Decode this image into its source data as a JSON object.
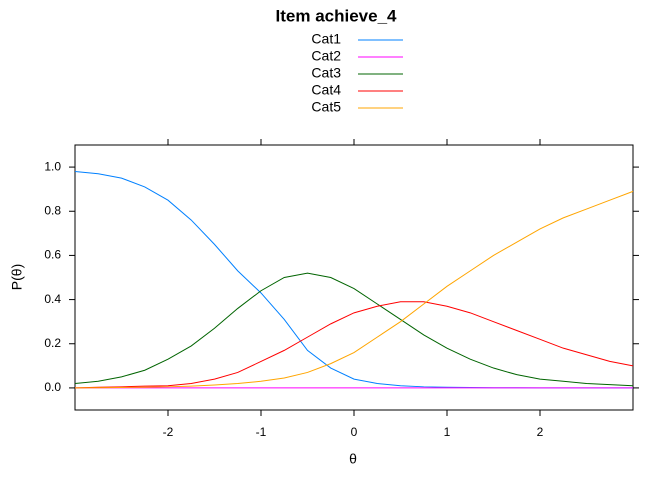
{
  "chart_data": {
    "type": "line",
    "title": "Item achieve_4",
    "xlabel": "θ",
    "ylabel": "P(θ)",
    "x": [
      -3,
      -2.75,
      -2.5,
      -2.25,
      -2,
      -1.75,
      -1.5,
      -1.25,
      -1,
      -0.75,
      -0.5,
      -0.25,
      0,
      0.25,
      0.5,
      0.75,
      1,
      1.25,
      1.5,
      1.75,
      2,
      2.25,
      2.5,
      2.75,
      3
    ],
    "series": [
      {
        "name": "Cat1",
        "color": "#0080ff",
        "values": [
          0.98,
          0.97,
          0.95,
          0.91,
          0.85,
          0.76,
          0.65,
          0.53,
          0.43,
          0.31,
          0.17,
          0.09,
          0.04,
          0.02,
          0.01,
          0.005,
          0.003,
          0.002,
          0.001,
          0.001,
          0,
          0,
          0,
          0,
          0
        ]
      },
      {
        "name": "Cat2",
        "color": "#ff00ff",
        "values": [
          0,
          0,
          0,
          0,
          0,
          0,
          0,
          0,
          0,
          0,
          0,
          0,
          0,
          0,
          0,
          0,
          0,
          0,
          0,
          0,
          0,
          0,
          0,
          0,
          0
        ]
      },
      {
        "name": "Cat3",
        "color": "#006400",
        "values": [
          0.02,
          0.03,
          0.05,
          0.08,
          0.13,
          0.19,
          0.27,
          0.36,
          0.44,
          0.5,
          0.52,
          0.5,
          0.45,
          0.38,
          0.31,
          0.24,
          0.18,
          0.13,
          0.09,
          0.06,
          0.04,
          0.03,
          0.02,
          0.015,
          0.01
        ]
      },
      {
        "name": "Cat4",
        "color": "#ff0000",
        "values": [
          0,
          0.003,
          0.005,
          0.008,
          0.01,
          0.02,
          0.04,
          0.07,
          0.12,
          0.17,
          0.23,
          0.29,
          0.34,
          0.37,
          0.39,
          0.39,
          0.37,
          0.34,
          0.3,
          0.26,
          0.22,
          0.18,
          0.15,
          0.12,
          0.1
        ]
      },
      {
        "name": "Cat5",
        "color": "#ffa500",
        "values": [
          0,
          0.001,
          0.002,
          0.003,
          0.005,
          0.008,
          0.013,
          0.02,
          0.03,
          0.045,
          0.07,
          0.11,
          0.16,
          0.23,
          0.3,
          0.38,
          0.46,
          0.53,
          0.6,
          0.66,
          0.72,
          0.77,
          0.81,
          0.85,
          0.89
        ]
      }
    ],
    "xlim": [
      -3,
      3
    ],
    "xticks": [
      -2,
      -1,
      0,
      1,
      2
    ],
    "ylim": [
      -0.1,
      1.1
    ],
    "yticks": [
      {
        "value": 0,
        "label": "0.0"
      },
      0.2,
      0.4,
      0.6,
      0.8,
      {
        "value": 1,
        "label": "1.0"
      }
    ],
    "legend": "top"
  }
}
